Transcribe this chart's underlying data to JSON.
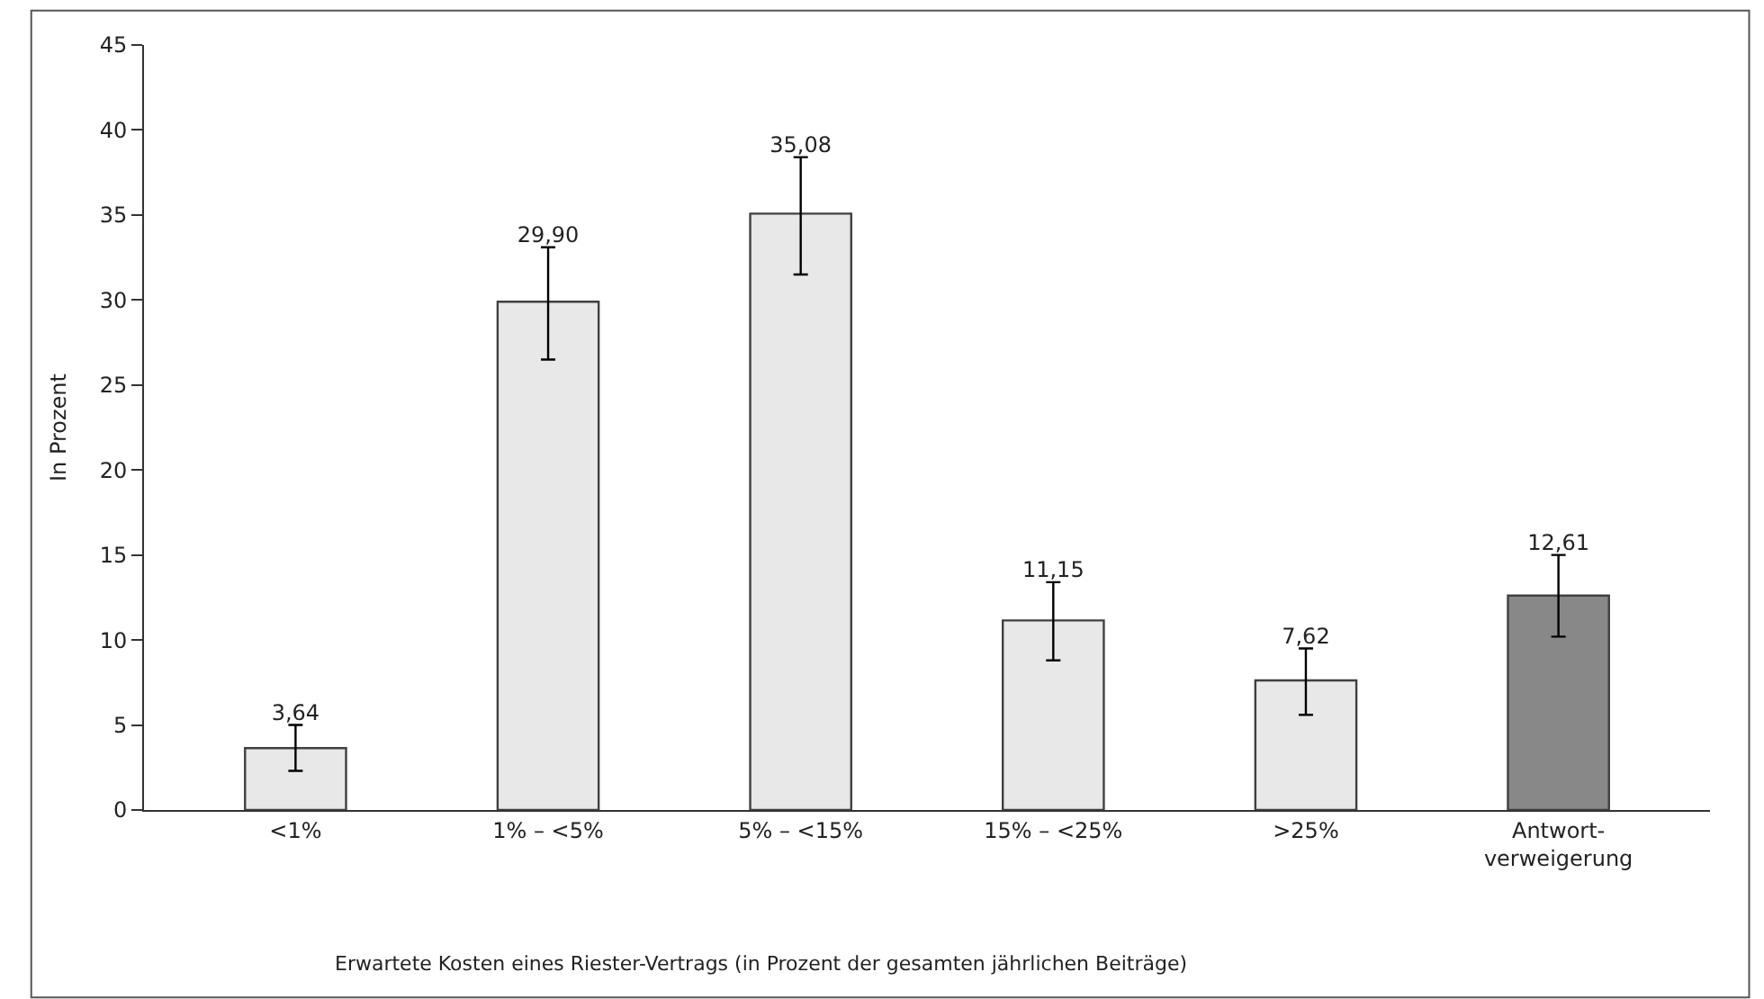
{
  "chart_data": {
    "type": "bar",
    "xlabel": "Erwartete Kosten eines Riester-Vertrags (in Prozent der gesamten jährlichen Beiträge)",
    "ylabel": "In Prozent",
    "categories": [
      "<1%",
      "1% – <5%",
      "5% – <15%",
      "15% – <25%",
      ">25%",
      "Antwort-\nverweigerung"
    ],
    "values": [
      3.64,
      29.9,
      35.08,
      11.15,
      7.62,
      12.61
    ],
    "value_labels": [
      "3,64",
      "29,90",
      "35,08",
      "11,15",
      "7,62",
      "12,61"
    ],
    "colors": [
      "#e8e8e8",
      "#e8e8e8",
      "#e8e8e8",
      "#e8e8e8",
      "#e8e8e8",
      "#888888"
    ],
    "errors": [
      [
        2.3,
        5.0
      ],
      [
        26.5,
        33.1
      ],
      [
        31.5,
        38.4
      ],
      [
        8.8,
        13.4
      ],
      [
        5.6,
        9.5
      ],
      [
        10.2,
        15.0
      ]
    ],
    "ylim": [
      0,
      45
    ],
    "yticks": [
      0,
      5,
      10,
      15,
      20,
      25,
      30,
      35,
      40,
      45
    ],
    "legend": false
  }
}
